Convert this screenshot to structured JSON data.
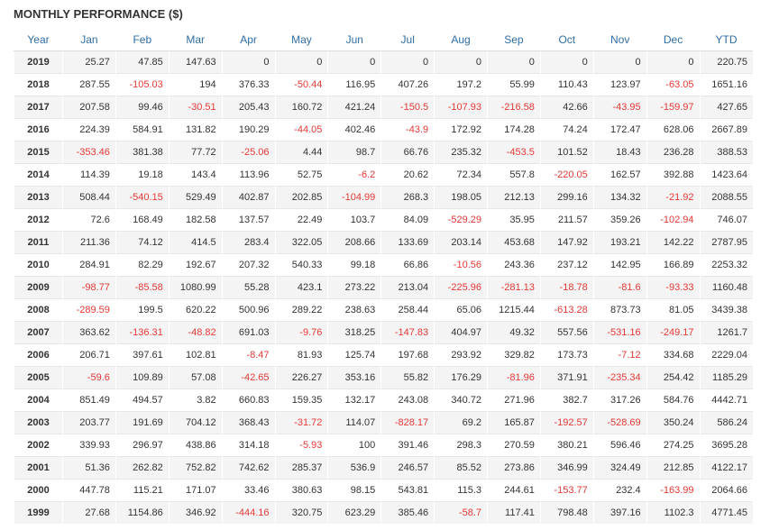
{
  "title": "MONTHLY PERFORMANCE ($)",
  "table": {
    "header": [
      "Year",
      "Jan",
      "Feb",
      "Mar",
      "Apr",
      "May",
      "Jun",
      "Jul",
      "Aug",
      "Sep",
      "Oct",
      "Nov",
      "Dec",
      "YTD"
    ],
    "rows": [
      [
        2019,
        25.27,
        47.85,
        147.63,
        0,
        0,
        0,
        0,
        0,
        0,
        0,
        0,
        0,
        220.75
      ],
      [
        2018,
        287.55,
        -105.03,
        194,
        376.33,
        -50.44,
        116.95,
        407.26,
        197.2,
        55.99,
        110.43,
        123.97,
        -63.05,
        1651.16
      ],
      [
        2017,
        207.58,
        99.46,
        -30.51,
        205.43,
        160.72,
        421.24,
        -150.5,
        -107.93,
        -216.58,
        42.66,
        -43.95,
        -159.97,
        427.65
      ],
      [
        2016,
        224.39,
        584.91,
        131.82,
        190.29,
        -44.05,
        402.46,
        -43.9,
        172.92,
        174.28,
        74.24,
        172.47,
        628.06,
        2667.89
      ],
      [
        2015,
        -353.46,
        381.38,
        77.72,
        -25.06,
        4.44,
        98.7,
        66.76,
        235.32,
        -453.5,
        101.52,
        18.43,
        236.28,
        388.53
      ],
      [
        2014,
        114.39,
        19.18,
        143.4,
        113.96,
        52.75,
        -6.2,
        20.62,
        72.34,
        557.8,
        -220.05,
        162.57,
        392.88,
        1423.64
      ],
      [
        2013,
        508.44,
        -540.15,
        529.49,
        402.87,
        202.85,
        -104.99,
        268.3,
        198.05,
        212.13,
        299.16,
        134.32,
        -21.92,
        2088.55
      ],
      [
        2012,
        72.6,
        168.49,
        182.58,
        137.57,
        22.49,
        103.7,
        84.09,
        -529.29,
        35.95,
        211.57,
        359.26,
        -102.94,
        746.07
      ],
      [
        2011,
        211.36,
        74.12,
        414.5,
        283.4,
        322.05,
        208.66,
        133.69,
        203.14,
        453.68,
        147.92,
        193.21,
        142.22,
        2787.95
      ],
      [
        2010,
        284.91,
        82.29,
        192.67,
        207.32,
        540.33,
        99.18,
        66.86,
        -10.56,
        243.36,
        237.12,
        142.95,
        166.89,
        2253.32
      ],
      [
        2009,
        -98.77,
        -85.58,
        1080.99,
        55.28,
        423.1,
        273.22,
        213.04,
        -225.96,
        -281.13,
        -18.78,
        -81.6,
        -93.33,
        1160.48
      ],
      [
        2008,
        -289.59,
        199.5,
        620.22,
        500.96,
        289.22,
        238.63,
        258.44,
        65.06,
        1215.44,
        -613.28,
        873.73,
        81.05,
        3439.38
      ],
      [
        2007,
        363.62,
        -136.31,
        -48.82,
        691.03,
        -9.76,
        318.25,
        -147.83,
        404.97,
        49.32,
        557.56,
        -531.16,
        -249.17,
        1261.7
      ],
      [
        2006,
        206.71,
        397.61,
        102.81,
        -8.47,
        81.93,
        125.74,
        197.68,
        293.92,
        329.82,
        173.73,
        -7.12,
        334.68,
        2229.04
      ],
      [
        2005,
        -59.6,
        109.89,
        57.08,
        -42.65,
        226.27,
        353.16,
        55.82,
        176.29,
        -81.96,
        371.91,
        -235.34,
        254.42,
        1185.29
      ],
      [
        2004,
        851.49,
        494.57,
        3.82,
        660.83,
        159.35,
        132.17,
        243.08,
        340.72,
        271.96,
        382.7,
        317.26,
        584.76,
        4442.71
      ],
      [
        2003,
        203.77,
        191.69,
        704.12,
        368.43,
        -31.72,
        114.07,
        -828.17,
        69.2,
        165.87,
        -192.57,
        -528.69,
        350.24,
        586.24
      ],
      [
        2002,
        339.93,
        296.97,
        438.86,
        314.18,
        -5.93,
        100,
        391.46,
        298.3,
        270.59,
        380.21,
        596.46,
        274.25,
        3695.28
      ],
      [
        2001,
        51.36,
        262.82,
        752.82,
        742.62,
        285.37,
        536.9,
        246.57,
        85.52,
        273.86,
        346.99,
        324.49,
        212.85,
        4122.17
      ],
      [
        2000,
        447.78,
        115.21,
        171.07,
        33.46,
        380.63,
        98.15,
        543.81,
        115.3,
        244.61,
        -153.77,
        232.4,
        -163.99,
        2064.66
      ],
      [
        1999,
        27.68,
        1154.86,
        346.92,
        -444.16,
        320.75,
        623.29,
        385.46,
        -58.7,
        117.41,
        798.48,
        397.16,
        1102.3,
        4771.45
      ]
    ]
  }
}
